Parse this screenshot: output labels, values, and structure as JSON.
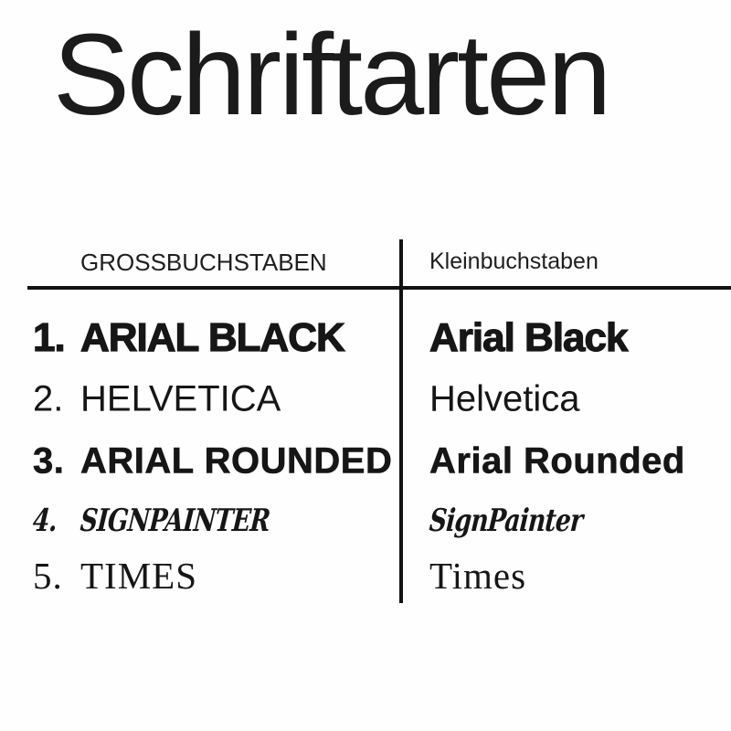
{
  "title": "Schriftarten",
  "table": {
    "headers": {
      "left": "GROSSBUCHSTABEN",
      "right": "Kleinbuchstaben"
    },
    "rows": [
      {
        "number": "1.",
        "uppercase": "ARIAL BLACK",
        "lowercase": "Arial Black",
        "font_name": "arial-black"
      },
      {
        "number": "2.",
        "uppercase": "HELVETICA",
        "lowercase": "Helvetica",
        "font_name": "helvetica"
      },
      {
        "number": "3.",
        "uppercase": "ARIAL ROUNDED",
        "lowercase": "Arial Rounded",
        "font_name": "arial-rounded"
      },
      {
        "number": "4.",
        "uppercase": "SIGNPAINTER",
        "lowercase": "SignPainter",
        "font_name": "signpainter"
      },
      {
        "number": "5.",
        "uppercase": "TIMES",
        "lowercase": "Times",
        "font_name": "times"
      }
    ]
  },
  "colors": {
    "background": "#fefefe",
    "text": "#161616",
    "line": "#121212"
  }
}
